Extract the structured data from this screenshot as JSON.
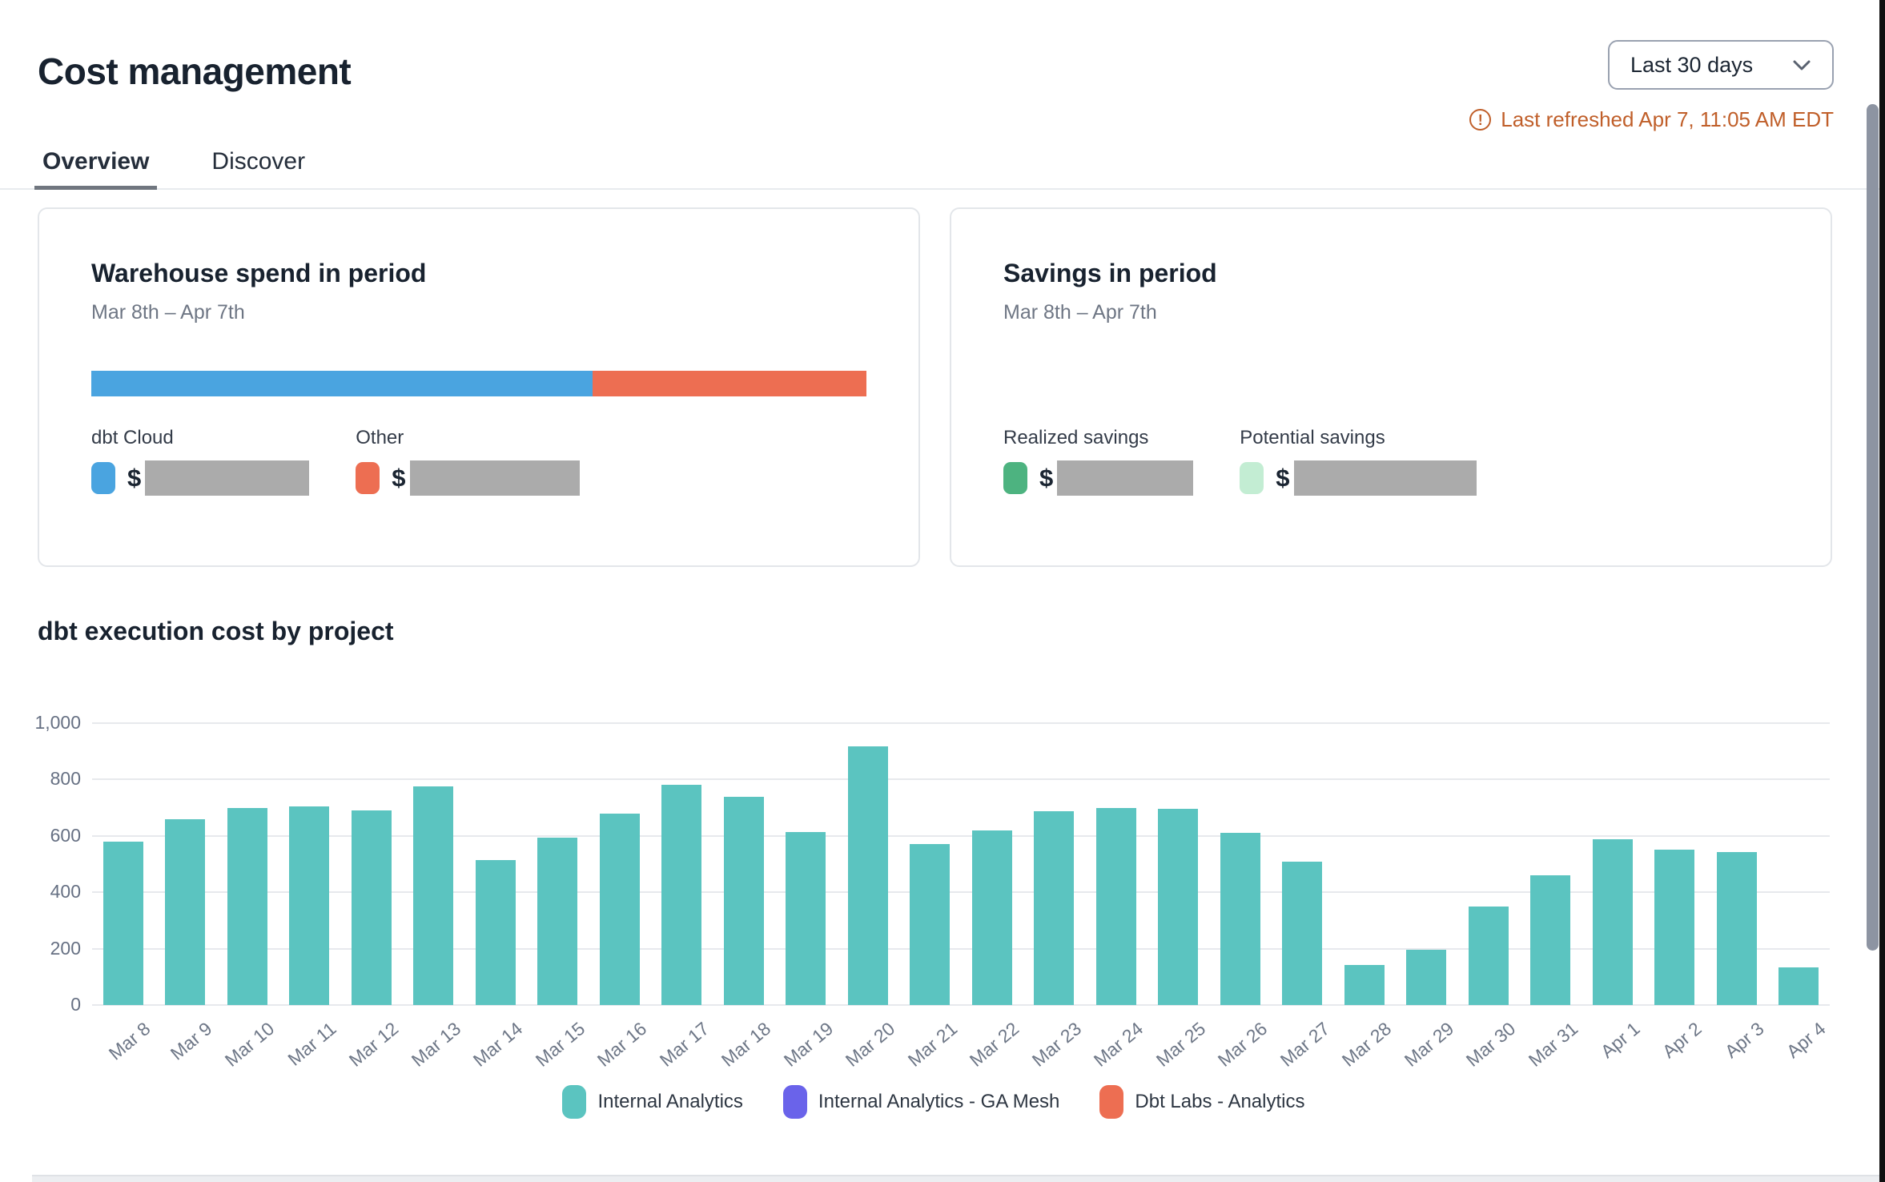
{
  "header": {
    "title": "Cost management",
    "date_range": {
      "selected": "Last 30 days"
    },
    "last_refreshed": "Last refreshed Apr 7, 11:05 AM EDT",
    "tabs": [
      {
        "label": "Overview",
        "active": true
      },
      {
        "label": "Discover",
        "active": false
      }
    ]
  },
  "warehouse_card": {
    "title": "Warehouse spend in period",
    "subtitle": "Mar 8th – Apr 7th",
    "currency_symbol": "$",
    "segments": [
      {
        "label": "dbt Cloud",
        "color": "#4AA4E0",
        "percent": 64.7
      },
      {
        "label": "Other",
        "color": "#ED6E52",
        "percent": 35.3
      }
    ]
  },
  "savings_card": {
    "title": "Savings in period",
    "subtitle": "Mar 8th – Apr 7th",
    "currency_symbol": "$",
    "items": [
      {
        "label": "Realized savings",
        "color": "#4DB380"
      },
      {
        "label": "Potential savings",
        "color": "#C3EDD3"
      }
    ]
  },
  "chart_section": {
    "title": "dbt execution cost by project"
  },
  "chart_data": {
    "type": "bar",
    "title": "dbt execution cost by project",
    "categories": [
      "Mar 8",
      "Mar 9",
      "Mar 10",
      "Mar 11",
      "Mar 12",
      "Mar 13",
      "Mar 14",
      "Mar 15",
      "Mar 16",
      "Mar 17",
      "Mar 18",
      "Mar 19",
      "Mar 20",
      "Mar 21",
      "Mar 22",
      "Mar 23",
      "Mar 24",
      "Mar 25",
      "Mar 26",
      "Mar 27",
      "Mar 28",
      "Mar 29",
      "Mar 30",
      "Mar 31",
      "Apr 1",
      "Apr 2",
      "Apr 3",
      "Apr 4"
    ],
    "series": [
      {
        "name": "Internal Analytics",
        "color": "#5BC4C0",
        "values": [
          580,
          660,
          700,
          705,
          690,
          775,
          515,
          595,
          680,
          780,
          740,
          615,
          918,
          572,
          620,
          687,
          700,
          697,
          612,
          508,
          143,
          195,
          350,
          460,
          588,
          551,
          543,
          133
        ]
      },
      {
        "name": "Internal Analytics - GA Mesh",
        "color": "#6A63EA",
        "values": []
      },
      {
        "name": "Dbt Labs - Analytics",
        "color": "#ED6E52",
        "values": []
      }
    ],
    "ylim": [
      0,
      1000
    ],
    "yticks": [
      {
        "value": 1000,
        "label": "1,000"
      },
      {
        "value": 800,
        "label": "800"
      },
      {
        "value": 600,
        "label": "600"
      },
      {
        "value": 400,
        "label": "400"
      },
      {
        "value": 200,
        "label": "200"
      },
      {
        "value": 0,
        "label": "0"
      }
    ],
    "grid": true,
    "legend_position": "bottom"
  },
  "colors": {
    "warning": "#C05F2A",
    "redaction": "#ABABAB"
  }
}
